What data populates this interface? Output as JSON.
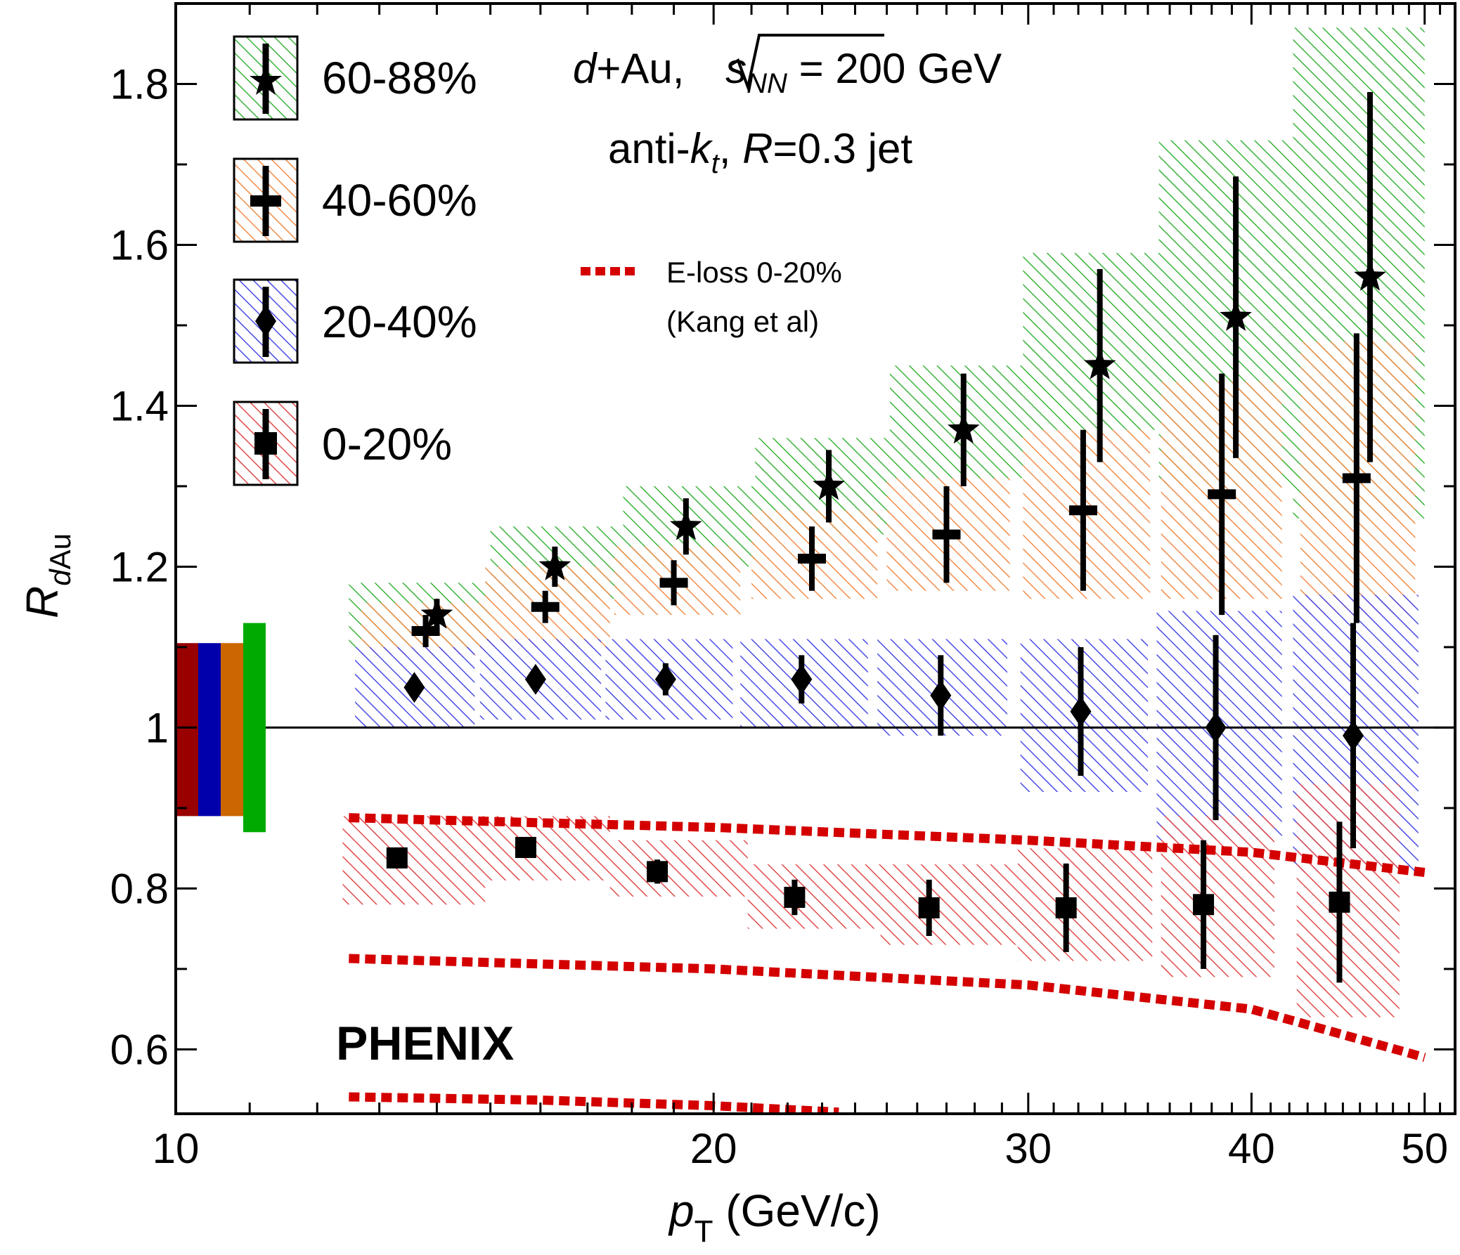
{
  "chart_data": {
    "type": "scatter",
    "xscale": "log",
    "xlim": [
      10,
      52
    ],
    "ylim": [
      0.52,
      1.9
    ],
    "xticks": [
      10,
      20,
      30,
      40,
      50
    ],
    "xtick_labels": [
      "10",
      "20",
      "30",
      "40",
      "50"
    ],
    "xminor": [
      11,
      12,
      13,
      14,
      15,
      16,
      17,
      18,
      19,
      21,
      22,
      23,
      24,
      25,
      26,
      27,
      28,
      29,
      31,
      32,
      33,
      34,
      35,
      36,
      37,
      38,
      39,
      41,
      42,
      43,
      44,
      45,
      46,
      47,
      48,
      49,
      51
    ],
    "yticks": [
      0.6,
      0.8,
      1.0,
      1.2,
      1.4,
      1.6,
      1.8
    ],
    "ytick_labels": [
      "0.6",
      "0.8",
      "1",
      "1.2",
      "1.4",
      "1.6",
      "1.8"
    ],
    "yminor": [
      0.7,
      0.9,
      1.1,
      1.3,
      1.5,
      1.7
    ],
    "xlabel_main": "p",
    "xlabel_sub": "T",
    "xlabel_unit": " (GeV/c)",
    "ylabel_main": "R",
    "ylabel_sub_d": "d",
    "ylabel_sub_au": "Au",
    "reference_line": 1.0,
    "experiment": "PHENIX",
    "annotation": {
      "line1_d": "d",
      "line1_plus_au": "+Au, ",
      "line1_s": "s",
      "line1_nn": "NN",
      "line1_energy": " = 200 GeV",
      "line2_a": "anti-",
      "line2_k": "k",
      "line2_t": "t",
      "line2_comma": ", ",
      "line2_r": "R",
      "line2_rest": "=0.3 jet"
    },
    "theory": {
      "label": "E-loss 0-20%",
      "ref": "(Kang et al)",
      "color": "#d40000",
      "curves": [
        {
          "x": [
            12.5,
            20,
            30,
            40,
            50
          ],
          "y": [
            0.888,
            0.876,
            0.86,
            0.845,
            0.82
          ]
        },
        {
          "x": [
            12.5,
            20,
            30,
            40,
            50
          ],
          "y": [
            0.713,
            0.7,
            0.68,
            0.65,
            0.59
          ]
        },
        {
          "x": [
            12.5,
            16,
            20,
            23.5
          ],
          "y": [
            0.541,
            0.537,
            0.53,
            0.522
          ]
        }
      ]
    },
    "series": [
      {
        "name": "60-88%",
        "marker": "star",
        "color": "#3ab33a",
        "points": [
          {
            "x": 14.0,
            "y": 1.14,
            "err": 0.02,
            "xlo": 12.5,
            "xhi": 15.0,
            "slo": 1.1,
            "shi": 1.18
          },
          {
            "x": 16.3,
            "y": 1.2,
            "err": 0.025,
            "xlo": 15.0,
            "xhi": 17.8,
            "slo": 1.16,
            "shi": 1.25
          },
          {
            "x": 19.3,
            "y": 1.25,
            "err": 0.035,
            "xlo": 17.8,
            "xhi": 21.1,
            "slo": 1.2,
            "shi": 1.3
          },
          {
            "x": 23.2,
            "y": 1.3,
            "err": 0.045,
            "xlo": 21.1,
            "xhi": 25.1,
            "slo": 1.24,
            "shi": 1.36
          },
          {
            "x": 27.6,
            "y": 1.37,
            "err": 0.07,
            "xlo": 25.1,
            "xhi": 29.8,
            "slo": 1.31,
            "shi": 1.45
          },
          {
            "x": 32.9,
            "y": 1.45,
            "err": 0.12,
            "xlo": 29.8,
            "xhi": 35.5,
            "slo": 1.37,
            "shi": 1.59
          },
          {
            "x": 39.2,
            "y": 1.51,
            "err": 0.175,
            "xlo": 35.5,
            "xhi": 42.2,
            "slo": 1.3,
            "shi": 1.73
          },
          {
            "x": 46.6,
            "y": 1.56,
            "err": 0.23,
            "xlo": 42.2,
            "xhi": 50.0,
            "slo": 1.26,
            "shi": 1.87
          }
        ]
      },
      {
        "name": "40-60%",
        "marker": "cross",
        "color": "#f08c4a",
        "points": [
          {
            "x": 13.8,
            "y": 1.12,
            "err": 0.02,
            "xlo": 12.7,
            "xhi": 14.9,
            "slo": 1.09,
            "shi": 1.155
          },
          {
            "x": 16.1,
            "y": 1.15,
            "err": 0.02,
            "xlo": 14.9,
            "xhi": 17.5,
            "slo": 1.1,
            "shi": 1.2
          },
          {
            "x": 19.0,
            "y": 1.18,
            "err": 0.028,
            "xlo": 17.6,
            "xhi": 20.7,
            "slo": 1.14,
            "shi": 1.225
          },
          {
            "x": 22.7,
            "y": 1.21,
            "err": 0.04,
            "xlo": 21.0,
            "xhi": 24.7,
            "slo": 1.16,
            "shi": 1.27
          },
          {
            "x": 27.0,
            "y": 1.24,
            "err": 0.06,
            "xlo": 25.0,
            "xhi": 29.3,
            "slo": 1.17,
            "shi": 1.31
          },
          {
            "x": 32.2,
            "y": 1.27,
            "err": 0.1,
            "xlo": 29.8,
            "xhi": 35.1,
            "slo": 1.16,
            "shi": 1.37
          },
          {
            "x": 38.5,
            "y": 1.29,
            "err": 0.15,
            "xlo": 35.6,
            "xhi": 41.6,
            "slo": 1.16,
            "shi": 1.43
          },
          {
            "x": 45.8,
            "y": 1.31,
            "err": 0.18,
            "xlo": 42.6,
            "xhi": 49.4,
            "slo": 1.14,
            "shi": 1.48
          }
        ]
      },
      {
        "name": "20-40%",
        "marker": "diamond",
        "color": "#4a4ae6",
        "points": [
          {
            "x": 13.6,
            "y": 1.05,
            "err": 0.01,
            "xlo": 12.6,
            "xhi": 14.7,
            "slo": 1.0,
            "shi": 1.1
          },
          {
            "x": 15.9,
            "y": 1.06,
            "err": 0.012,
            "xlo": 14.8,
            "xhi": 17.3,
            "slo": 1.01,
            "shi": 1.11
          },
          {
            "x": 18.8,
            "y": 1.06,
            "err": 0.02,
            "xlo": 17.4,
            "xhi": 20.5,
            "slo": 1.01,
            "shi": 1.11
          },
          {
            "x": 22.4,
            "y": 1.06,
            "err": 0.03,
            "xlo": 20.7,
            "xhi": 24.4,
            "slo": 1.0,
            "shi": 1.11
          },
          {
            "x": 26.8,
            "y": 1.04,
            "err": 0.05,
            "xlo": 24.7,
            "xhi": 29.2,
            "slo": 0.99,
            "shi": 1.11
          },
          {
            "x": 32.1,
            "y": 1.02,
            "err": 0.08,
            "xlo": 29.7,
            "xhi": 35.0,
            "slo": 0.92,
            "shi": 1.11
          },
          {
            "x": 38.2,
            "y": 1.0,
            "err": 0.115,
            "xlo": 35.4,
            "xhi": 41.6,
            "slo": 0.86,
            "shi": 1.145
          },
          {
            "x": 45.6,
            "y": 0.99,
            "err": 0.14,
            "xlo": 42.2,
            "xhi": 49.6,
            "slo": 0.82,
            "shi": 1.165
          }
        ]
      },
      {
        "name": "0-20%",
        "marker": "square",
        "color": "#e04a4a",
        "points": [
          {
            "x": 13.3,
            "y": 0.838,
            "err": 0.008,
            "xlo": 12.4,
            "xhi": 14.9,
            "slo": 0.78,
            "shi": 0.89
          },
          {
            "x": 15.7,
            "y": 0.851,
            "err": 0.01,
            "xlo": 14.9,
            "xhi": 17.5,
            "slo": 0.81,
            "shi": 0.89
          },
          {
            "x": 18.6,
            "y": 0.821,
            "err": 0.015,
            "xlo": 17.5,
            "xhi": 20.9,
            "slo": 0.79,
            "shi": 0.86
          },
          {
            "x": 22.2,
            "y": 0.789,
            "err": 0.022,
            "xlo": 20.9,
            "xhi": 24.8,
            "slo": 0.75,
            "shi": 0.83
          },
          {
            "x": 26.4,
            "y": 0.776,
            "err": 0.035,
            "xlo": 24.8,
            "xhi": 29.6,
            "slo": 0.73,
            "shi": 0.83
          },
          {
            "x": 31.5,
            "y": 0.776,
            "err": 0.055,
            "xlo": 29.6,
            "xhi": 35.2,
            "slo": 0.71,
            "shi": 0.85
          },
          {
            "x": 37.6,
            "y": 0.78,
            "err": 0.08,
            "xlo": 35.6,
            "xhi": 41.2,
            "slo": 0.69,
            "shi": 0.89
          },
          {
            "x": 44.8,
            "y": 0.783,
            "err": 0.1,
            "xlo": 42.4,
            "xhi": 48.4,
            "slo": 0.64,
            "shi": 0.93
          }
        ]
      }
    ],
    "normalization_boxes": [
      {
        "color": "#990000",
        "ylo": 0.89,
        "yhi": 1.105
      },
      {
        "color": "#0000aa",
        "ylo": 0.89,
        "yhi": 1.105
      },
      {
        "color": "#cc6600",
        "ylo": 0.89,
        "yhi": 1.105
      },
      {
        "color": "#00aa00",
        "ylo": 0.87,
        "yhi": 1.13
      }
    ]
  }
}
